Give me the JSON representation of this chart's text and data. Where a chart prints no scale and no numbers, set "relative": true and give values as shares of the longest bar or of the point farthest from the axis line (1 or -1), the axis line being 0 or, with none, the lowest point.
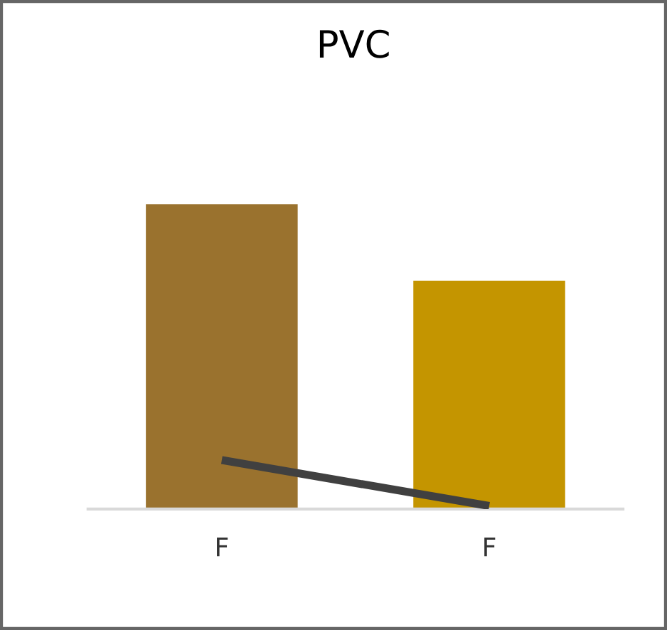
{
  "chart_data": {
    "type": "bar",
    "title": "PVC",
    "relative": true,
    "categories": [
      "F",
      "F"
    ],
    "series": [
      {
        "colors": [
          "#9a722e",
          "#c49500"
        ],
        "values": [
          1,
          0.75
        ]
      },
      {
        "type": "line",
        "color": "#404040",
        "values": [
          0.16,
          0.01
        ]
      }
    ],
    "grid": false,
    "legend": false
  }
}
